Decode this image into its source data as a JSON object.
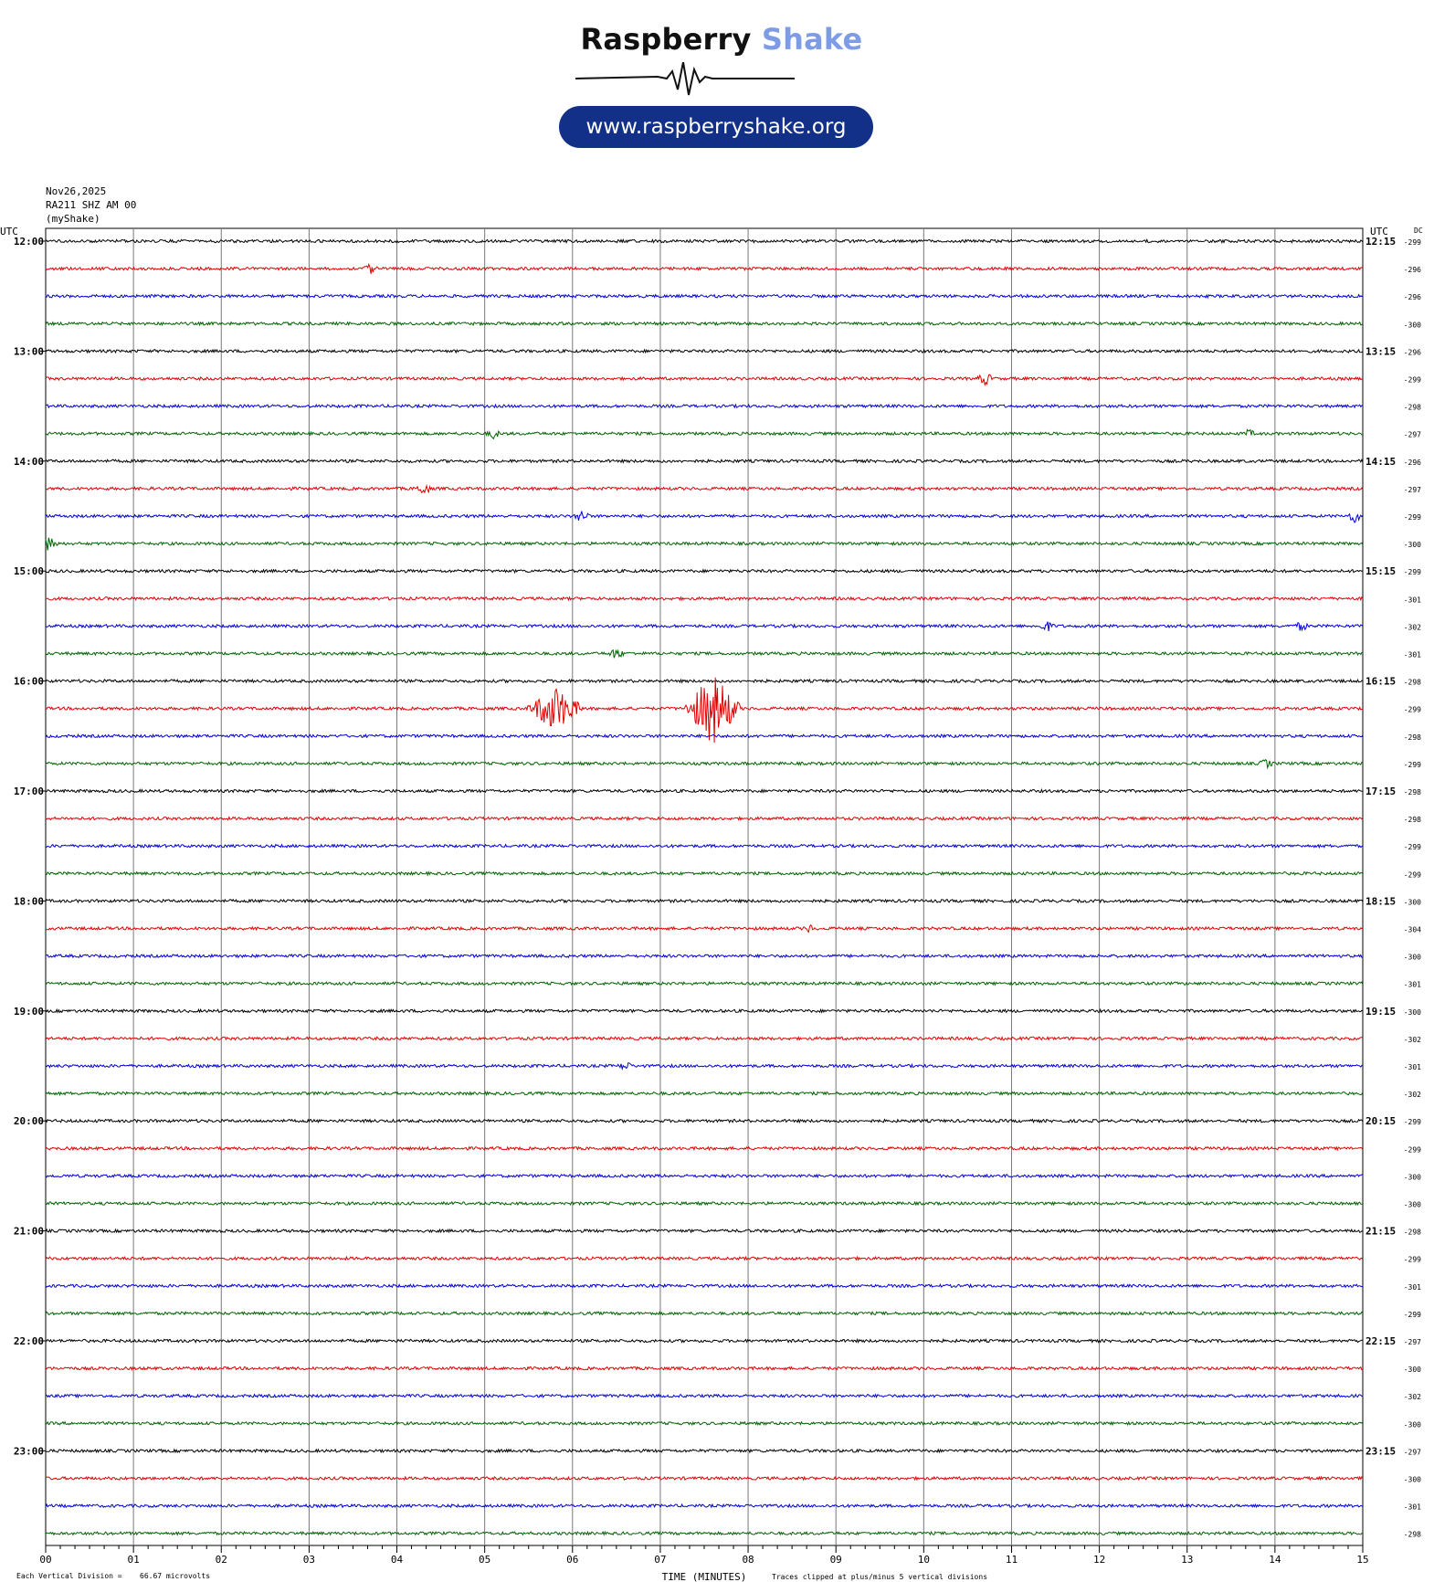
{
  "logo": {
    "brand_part1": "Raspberry",
    "brand_part2": "Shake",
    "url": "www.raspberryshake.org"
  },
  "header": {
    "date": "Nov26,2025",
    "station": "RA211 SHZ AM 00",
    "source": "(myShake)"
  },
  "chart_data": {
    "type": "line",
    "title": "",
    "left_axis_label": "UTC",
    "right_axis_label": "UTC",
    "dc_label": "DC",
    "xlabel": "TIME (MINUTES)",
    "xlim": [
      0,
      15
    ],
    "x_ticks": [
      "00",
      "01",
      "02",
      "03",
      "04",
      "05",
      "06",
      "07",
      "08",
      "09",
      "10",
      "11",
      "12",
      "13",
      "14",
      "15"
    ],
    "left_hour_labels": [
      "12:00",
      "13:00",
      "14:00",
      "15:00",
      "16:00",
      "17:00",
      "18:00",
      "19:00",
      "20:00",
      "21:00",
      "22:00",
      "23:00"
    ],
    "right_hour_labels": [
      "12:15",
      "13:15",
      "14:15",
      "15:15",
      "16:15",
      "17:15",
      "18:15",
      "19:15",
      "20:15",
      "21:15",
      "22:15",
      "23:15"
    ],
    "trace_colors": [
      "#000000",
      "#e00000",
      "#0000d8",
      "#006400"
    ],
    "dc_offsets": [
      "-299",
      "-296",
      "-296",
      "-300",
      "-296",
      "-299",
      "-298",
      "-297",
      "-296",
      "-297",
      "-299",
      "-300",
      "-299",
      "-301",
      "-302",
      "-301",
      "-298",
      "-299",
      "-298",
      "-299",
      "-298",
      "-298",
      "-299",
      "-299",
      "-300",
      "-304",
      "-300",
      "-301",
      "-300",
      "-302",
      "-301",
      "-302",
      "-299",
      "-299",
      "-300",
      "-300",
      "-298",
      "-299",
      "-301",
      "-299",
      "-297",
      "-300",
      "-302",
      "-300",
      "-297",
      "-300",
      "-301",
      "-298"
    ],
    "events": [
      {
        "trace": 1,
        "minute": 3.7,
        "amplitude": 6
      },
      {
        "trace": 5,
        "minute": 10.7,
        "amplitude": 8
      },
      {
        "trace": 7,
        "minute": 5.1,
        "amplitude": 6
      },
      {
        "trace": 7,
        "minute": 13.7,
        "amplitude": 5
      },
      {
        "trace": 9,
        "minute": 4.3,
        "amplitude": 8
      },
      {
        "trace": 10,
        "minute": 6.1,
        "amplitude": 8
      },
      {
        "trace": 10,
        "minute": 14.9,
        "amplitude": 8
      },
      {
        "trace": 11,
        "minute": 0.05,
        "amplitude": 10
      },
      {
        "trace": 14,
        "minute": 11.4,
        "amplitude": 7
      },
      {
        "trace": 14,
        "minute": 14.3,
        "amplitude": 6
      },
      {
        "trace": 15,
        "minute": 6.5,
        "amplitude": 7
      },
      {
        "trace": 17,
        "minute": 5.8,
        "amplitude": 26
      },
      {
        "trace": 17,
        "minute": 7.6,
        "amplitude": 40
      },
      {
        "trace": 19,
        "minute": 13.9,
        "amplitude": 6
      },
      {
        "trace": 25,
        "minute": 8.7,
        "amplitude": 5
      },
      {
        "trace": 30,
        "minute": 6.6,
        "amplitude": 6
      }
    ],
    "footer": {
      "scale_note": "Each Vertical Division =",
      "scale_value": "66.67 microvolts",
      "clip_note": "Traces clipped at plus/minus 5 vertical divisions"
    }
  }
}
